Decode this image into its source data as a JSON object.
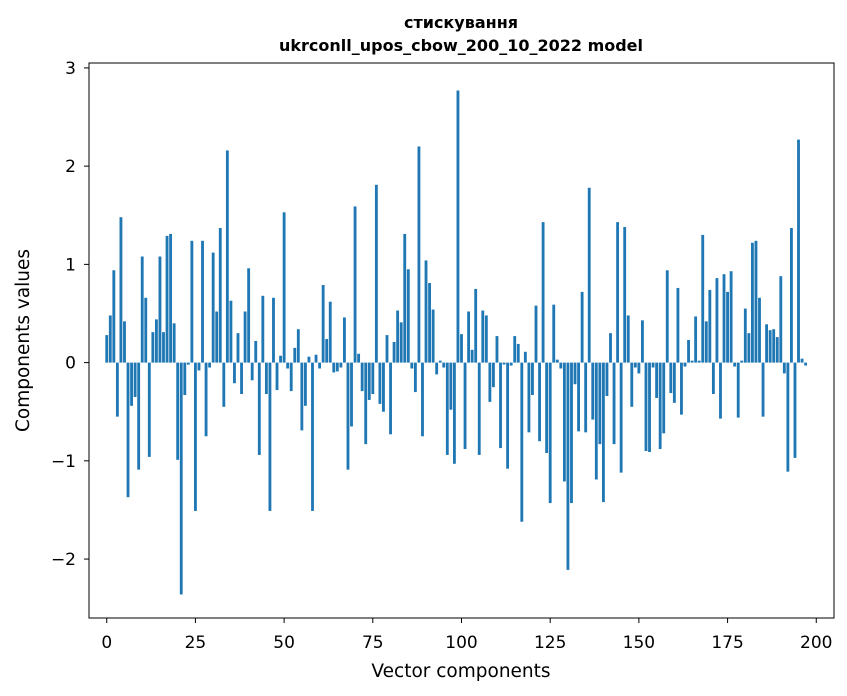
{
  "chart_data": {
    "type": "bar",
    "title": "стискування",
    "subtitle": "ukrconll_upos_cbow_200_10_2022 model",
    "xlabel": "Vector components",
    "ylabel": "Components values",
    "xlim": [
      -5,
      205
    ],
    "ylim": [
      -2.6,
      3.05
    ],
    "xticks": [
      0,
      25,
      50,
      75,
      100,
      125,
      150,
      175,
      200
    ],
    "yticks": [
      -2,
      -1,
      0,
      1,
      2,
      3
    ],
    "ytick_labels": [
      "−2",
      "−1",
      "0",
      "1",
      "2",
      "3"
    ],
    "grid": false,
    "color": "#1f77b4",
    "values": [
      0.28,
      0.48,
      0.94,
      -0.55,
      1.48,
      0.42,
      -1.37,
      -0.44,
      -0.35,
      -1.09,
      1.08,
      0.66,
      -0.96,
      0.31,
      0.44,
      1.08,
      0.31,
      1.29,
      1.31,
      0.4,
      -0.99,
      -2.36,
      -0.33,
      -0.02,
      1.24,
      -1.51,
      -0.08,
      1.24,
      -0.75,
      -0.05,
      1.12,
      0.52,
      1.37,
      -0.45,
      2.16,
      0.63,
      -0.21,
      0.3,
      -0.32,
      0.52,
      0.96,
      -0.18,
      0.22,
      -0.94,
      0.68,
      -0.32,
      -1.51,
      0.66,
      -0.28,
      0.07,
      1.53,
      -0.06,
      -0.29,
      0.15,
      0.34,
      -0.69,
      -0.44,
      0.06,
      -1.51,
      0.08,
      -0.06,
      0.79,
      0.24,
      0.62,
      -0.1,
      -0.09,
      -0.05,
      0.46,
      -1.09,
      -0.65,
      1.59,
      0.09,
      -0.29,
      -0.83,
      -0.38,
      -0.32,
      1.81,
      -0.42,
      -0.5,
      0.28,
      -0.73,
      0.21,
      0.53,
      0.41,
      1.31,
      0.95,
      -0.06,
      -0.3,
      2.2,
      -0.75,
      1.04,
      0.81,
      0.54,
      -0.12,
      0.02,
      -0.05,
      -0.94,
      -0.48,
      -1.03,
      2.77,
      0.29,
      -0.88,
      0.52,
      0.13,
      0.75,
      -0.94,
      0.53,
      0.48,
      -0.4,
      -0.25,
      0.27,
      -0.87,
      -0.02,
      -1.08,
      -0.03,
      0.27,
      0.19,
      -1.62,
      0.11,
      -0.71,
      -0.33,
      0.58,
      -0.8,
      1.43,
      -0.92,
      -1.43,
      0.59,
      0.03,
      -0.06,
      -1.21,
      -2.11,
      -1.43,
      -0.22,
      -0.7,
      0.72,
      -0.71,
      1.78,
      -0.58,
      -1.19,
      -0.83,
      -1.42,
      -0.34,
      0.3,
      -0.83,
      1.43,
      -1.12,
      1.38,
      0.48,
      -0.45,
      -0.05,
      -0.11,
      0.43,
      -0.9,
      -0.91,
      -0.05,
      -0.36,
      -0.88,
      -0.72,
      0.94,
      -0.31,
      -0.41,
      0.76,
      -0.53,
      -0.04,
      0.23,
      0.02,
      0.47,
      0.02,
      1.3,
      0.42,
      0.74,
      -0.32,
      0.86,
      -0.57,
      0.9,
      0.72,
      0.93,
      -0.04,
      -0.56,
      0.02,
      0.55,
      0.3,
      1.22,
      1.24,
      0.66,
      -0.55,
      0.39,
      0.33,
      0.34,
      0.26,
      0.88,
      -0.11,
      -1.11,
      1.37,
      -0.97,
      2.27,
      0.04,
      -0.03
    ]
  }
}
